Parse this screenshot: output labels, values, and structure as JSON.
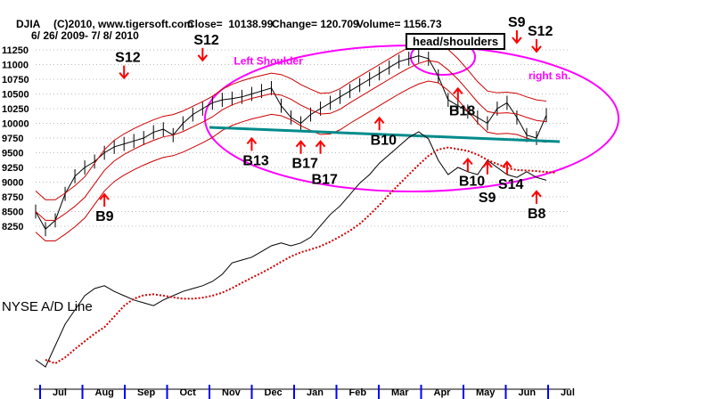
{
  "header": {
    "symbol": "DJIA",
    "copyright": "(C)2010, www.tigersoft.com",
    "close": "Close=  10138.99",
    "change": "Change= 120.709",
    "volume": "Volume= 1156.73",
    "range": "6/ 26/ 2009- 7/ 8/ 2010"
  },
  "chart_data": {
    "type": "line",
    "title": "DJIA",
    "pattern_label": "head/shoulders",
    "ylim": [
      8000,
      11400
    ],
    "yticks": [
      8250,
      8500,
      8750,
      9000,
      9250,
      9500,
      9750,
      10000,
      10250,
      10500,
      10750,
      11000,
      11250
    ],
    "ytick_labels": [
      "8250",
      "8500",
      "8750",
      "9000",
      "9250",
      "9500",
      "9750",
      "10000",
      "10250",
      "10500",
      "10750",
      "11000",
      "11250"
    ],
    "months": [
      "Jul",
      "Aug",
      "Sep",
      "Oct",
      "Nov",
      "Dec",
      "Jan",
      "Feb",
      "Mar",
      "Apr",
      "May",
      "Jun",
      "Jul"
    ],
    "series": [
      {
        "name": "DJIA weekly close",
        "values": [
          8500,
          8200,
          8350,
          8800,
          9100,
          9250,
          9350,
          9500,
          9600,
          9650,
          9700,
          9750,
          9850,
          9900,
          9800,
          10000,
          10150,
          10250,
          10350,
          10400,
          10420,
          10450,
          10500,
          10550,
          10600,
          10300,
          10100,
          10000,
          10150,
          10250,
          10350,
          10450,
          10550,
          10650,
          10750,
          10850,
          10950,
          11050,
          11100,
          11150,
          11100,
          10800,
          10400,
          10300,
          10200,
          10100,
          10000,
          10250,
          10350,
          10100,
          9800,
          9750,
          10139
        ]
      },
      {
        "name": "NYSE A/D Line",
        "values": [
          10,
          5,
          20,
          35,
          45,
          55,
          60,
          62,
          58,
          55,
          52,
          50,
          48,
          52,
          55,
          58,
          60,
          62,
          65,
          70,
          78,
          80,
          82,
          86,
          90,
          92,
          90,
          92,
          96,
          104,
          112,
          118,
          126,
          134,
          140,
          148,
          154,
          160,
          166,
          170,
          165,
          150,
          140,
          145,
          142,
          140,
          150,
          145,
          140,
          138,
          142,
          138,
          136
        ]
      }
    ],
    "annotations": [
      {
        "label": "S12",
        "week": 17,
        "price": 10950,
        "dir": "down"
      },
      {
        "label": "S12",
        "week": 9,
        "price": 10650,
        "dir": "down"
      },
      {
        "label": "Left Shoulder",
        "week": 22,
        "price": 11000
      },
      {
        "label": "B9",
        "week": 7,
        "price": 8400,
        "dir": "up"
      },
      {
        "label": "B13",
        "week": 22,
        "price": 9350,
        "dir": "up"
      },
      {
        "label": "B17",
        "week": 27,
        "price": 9300,
        "dir": "up"
      },
      {
        "label": "B17",
        "week": 29,
        "price": 9300,
        "dir": "up"
      },
      {
        "label": "B10",
        "week": 35,
        "price": 9700,
        "dir": "up"
      },
      {
        "label": "B18",
        "week": 43,
        "price": 10200,
        "dir": "up"
      },
      {
        "label": "S9",
        "week": 49,
        "price": 11250,
        "dir": "down"
      },
      {
        "label": "S12",
        "week": 51,
        "price": 11100,
        "dir": "down"
      },
      {
        "label": "right sh.",
        "week": 52,
        "price": 10750
      },
      {
        "label": "B10",
        "week": 44,
        "price": 9000,
        "dir": "up"
      },
      {
        "label": "S9",
        "week": 46,
        "price": 8950,
        "dir": "up"
      },
      {
        "label": "S14",
        "week": 48,
        "price": 8950,
        "dir": "up"
      },
      {
        "label": "B8",
        "week": 51,
        "price": 8450,
        "dir": "up"
      }
    ],
    "ad_label": "NYSE A/D Line",
    "colors": {
      "price": "#000000",
      "ma": "#cc0000",
      "neckline": "#008b8b",
      "ellipse": "#ff00ff",
      "signal": "#ff0000"
    }
  }
}
